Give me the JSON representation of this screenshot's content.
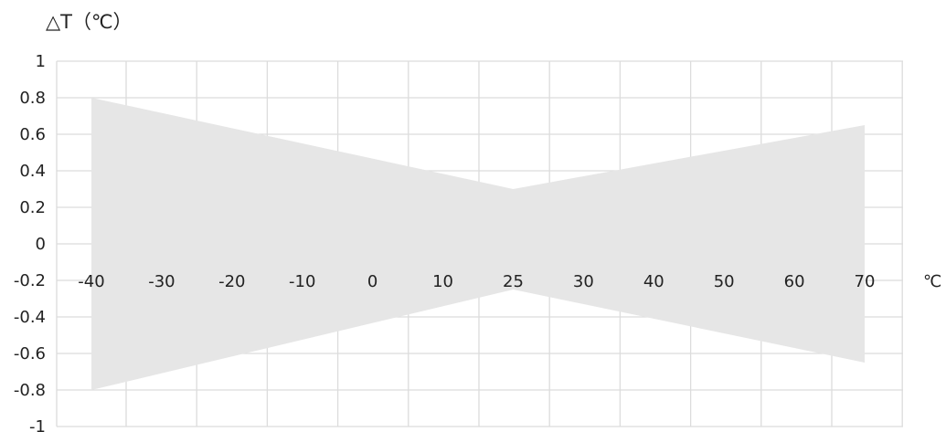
{
  "chart_data": {
    "type": "area",
    "ylabel": "△T（℃）",
    "xlabel": "℃",
    "ylim": [
      -1,
      1
    ],
    "yticks": [
      "1",
      "0.8",
      "0.6",
      "0.4",
      "0.2",
      "0",
      "-0.2",
      "-0.4",
      "-0.6",
      "-0.8",
      "-1"
    ],
    "yticks_values": [
      1,
      0.8,
      0.6,
      0.4,
      0.2,
      0,
      -0.2,
      -0.4,
      -0.6,
      -0.8,
      -1
    ],
    "xticks": [
      "-40",
      "-30",
      "-20",
      "-10",
      "0",
      "10",
      "25",
      "30",
      "40",
      "50",
      "60",
      "70"
    ],
    "grid": true,
    "band": {
      "x": [
        "-40",
        "25",
        "70"
      ],
      "upper": [
        0.8,
        0.3,
        0.65
      ],
      "lower": [
        -0.8,
        -0.25,
        -0.65
      ]
    },
    "colors": {
      "band": "#e6e6e6",
      "grid": "#dcdcdc"
    }
  }
}
